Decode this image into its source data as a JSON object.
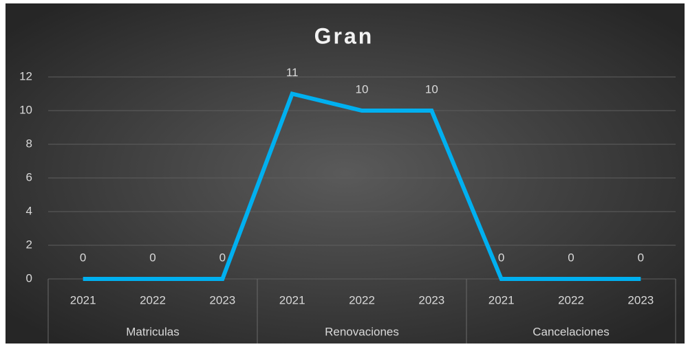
{
  "chart_data": {
    "type": "line",
    "title": "Gran",
    "categories": [
      "2021",
      "2022",
      "2023",
      "2021",
      "2022",
      "2023",
      "2021",
      "2022",
      "2023"
    ],
    "groups": [
      "Matriculas",
      "Renovaciones",
      "Cancelaciones"
    ],
    "values": [
      0,
      0,
      0,
      11,
      10,
      10,
      0,
      0,
      0
    ],
    "color": "#00b0f0",
    "ylim": [
      0,
      12
    ],
    "yticks": [
      0,
      2,
      4,
      6,
      8,
      10,
      12
    ],
    "grid": true
  }
}
